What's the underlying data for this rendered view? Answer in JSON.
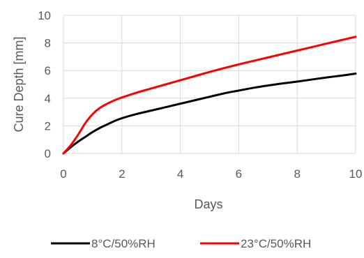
{
  "chart_data": {
    "type": "line",
    "xlabel": "Days",
    "ylabel": "Cure Depth [mm]",
    "xlim": [
      0,
      10
    ],
    "ylim": [
      0,
      10
    ],
    "x_ticks": [
      "0",
      "2",
      "4",
      "6",
      "8",
      "10"
    ],
    "y_ticks": [
      "0",
      "2",
      "4",
      "6",
      "8",
      "10"
    ],
    "grid": true,
    "legend_position": "bottom",
    "series": [
      {
        "name": "8°C/50%RH",
        "color": "#000000",
        "x": [
          0,
          0.25,
          0.5,
          0.75,
          1.0,
          1.25,
          1.5,
          1.75,
          2.0,
          2.5,
          3.0,
          3.5,
          4.0,
          4.5,
          5.0,
          5.5,
          6.0,
          6.5,
          7.0,
          7.5,
          8.0,
          8.5,
          9.0,
          9.5,
          10.0
        ],
        "values": [
          0,
          0.45,
          0.85,
          1.2,
          1.55,
          1.85,
          2.1,
          2.35,
          2.55,
          2.85,
          3.1,
          3.35,
          3.6,
          3.85,
          4.1,
          4.35,
          4.55,
          4.75,
          4.92,
          5.07,
          5.2,
          5.35,
          5.5,
          5.63,
          5.78
        ]
      },
      {
        "name": "23°C/50%RH",
        "color": "#ff0000",
        "x": [
          0,
          0.25,
          0.5,
          0.75,
          1.0,
          1.25,
          1.5,
          1.75,
          2.0,
          2.5,
          3.0,
          3.5,
          4.0,
          4.5,
          5.0,
          5.5,
          6.0,
          6.5,
          7.0,
          7.5,
          8.0,
          8.5,
          9.0,
          9.5,
          10.0
        ],
        "values": [
          0,
          0.6,
          1.35,
          2.2,
          2.85,
          3.3,
          3.6,
          3.85,
          4.05,
          4.4,
          4.7,
          5.0,
          5.3,
          5.6,
          5.9,
          6.18,
          6.45,
          6.7,
          6.95,
          7.2,
          7.45,
          7.7,
          7.95,
          8.2,
          8.45
        ]
      }
    ]
  }
}
